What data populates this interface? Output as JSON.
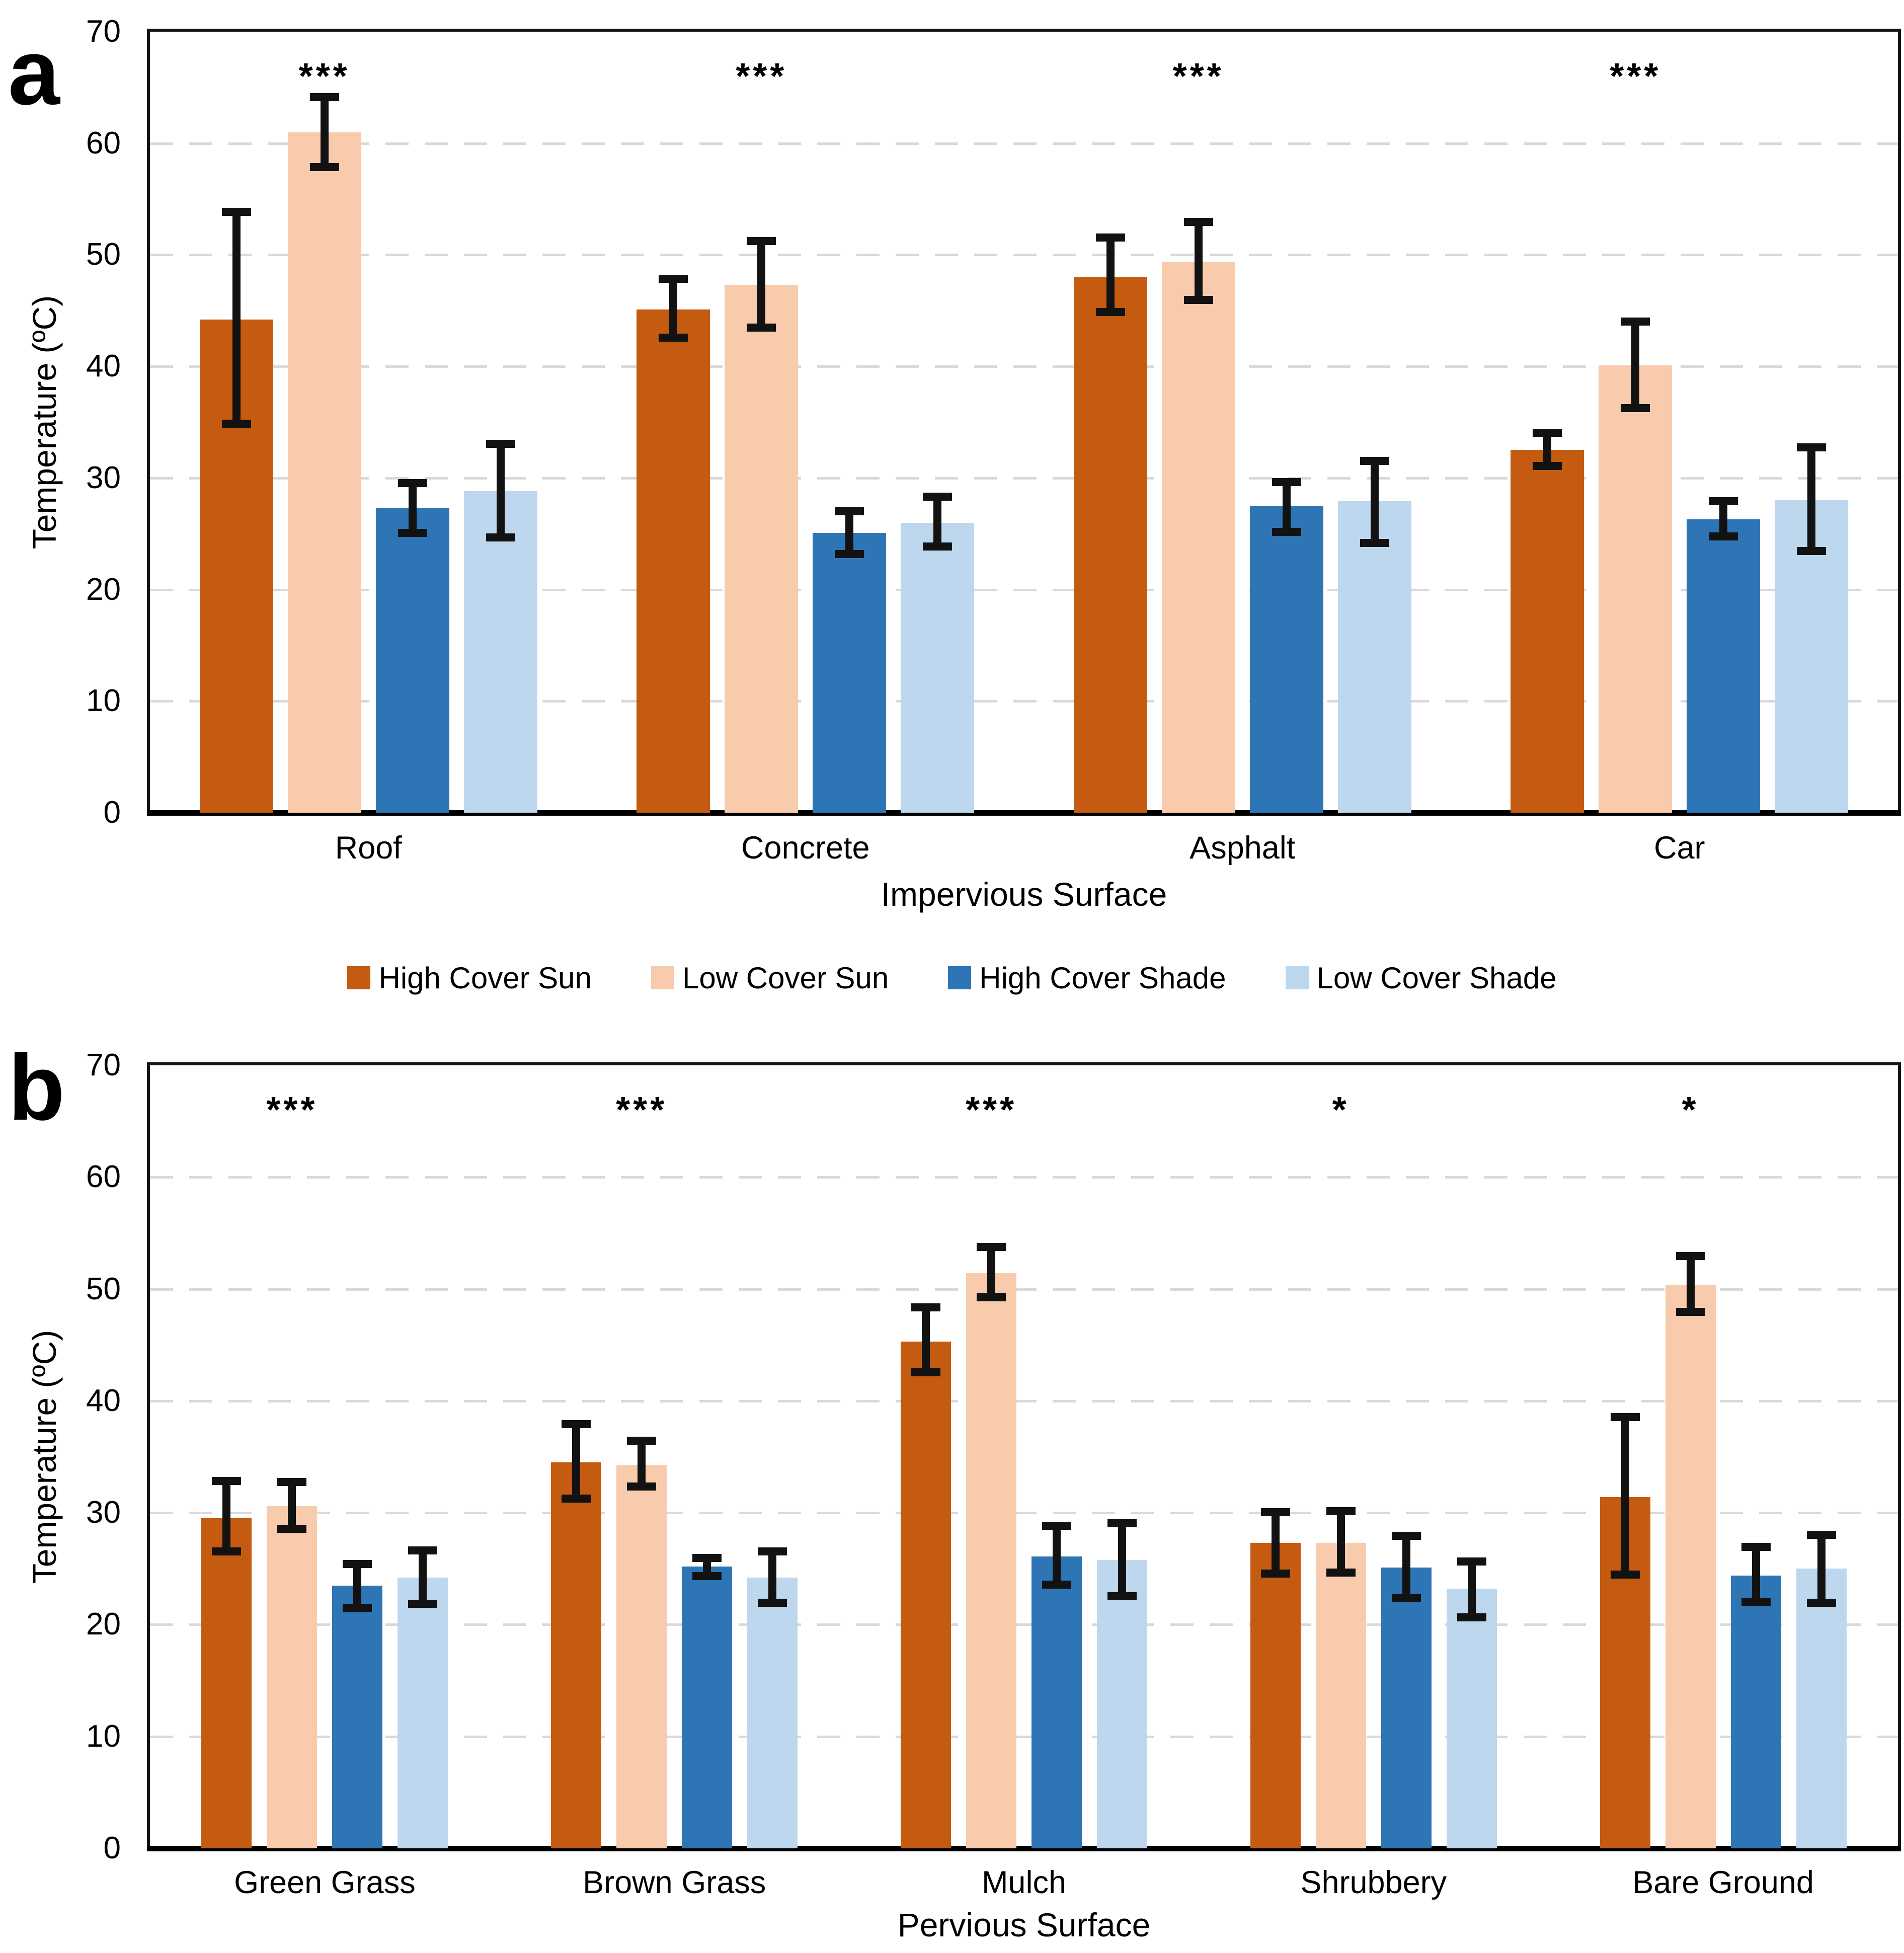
{
  "figure": {
    "y_axis_title": "Temperature (ºC)",
    "background_color": "#ffffff",
    "gridline_color": "#d9d9d9",
    "error_bar_color": "#121212",
    "legend": [
      {
        "label": "High Cover Sun",
        "color": "#C55A11"
      },
      {
        "label": "Low Cover Sun",
        "color": "#F8CBAD"
      },
      {
        "label": "High Cover Shade",
        "color": "#2E75B6"
      },
      {
        "label": "Low Cover Shade",
        "color": "#BDD7EE"
      }
    ]
  },
  "chart_data": [
    {
      "type": "bar",
      "panel": "a",
      "xlabel": "Impervious Surface",
      "ylabel": "Temperature (ºC)",
      "ylim": [
        0,
        70
      ],
      "yticks": [
        0,
        10,
        20,
        30,
        40,
        50,
        60,
        70
      ],
      "grid": "horizontal dashed at 10-60",
      "legend_position": "centered below panel a",
      "error_bars": "plus-minus, capped",
      "categories": [
        "Roof",
        "Concrete",
        "Asphalt",
        "Car"
      ],
      "significance": [
        "***",
        "***",
        "***",
        "***"
      ],
      "series": [
        {
          "name": "High Cover Sun",
          "color": "#C55A11",
          "values": [
            44.2,
            45.1,
            48.0,
            32.5
          ],
          "err_low": [
            34.5,
            42.2,
            44.5,
            30.7
          ],
          "err_high": [
            54.2,
            48.2,
            51.9,
            34.4
          ]
        },
        {
          "name": "Low Cover Sun",
          "color": "#F8CBAD",
          "values": [
            61.0,
            47.3,
            49.4,
            40.1
          ],
          "err_low": [
            57.5,
            43.1,
            45.6,
            35.9
          ],
          "err_high": [
            64.5,
            51.6,
            53.3,
            44.4
          ]
        },
        {
          "name": "High Cover Shade",
          "color": "#2E75B6",
          "values": [
            27.3,
            25.1,
            27.5,
            26.3
          ],
          "err_low": [
            24.7,
            22.8,
            24.8,
            24.4
          ],
          "err_high": [
            29.9,
            27.4,
            30.0,
            28.3
          ]
        },
        {
          "name": "Low Cover Shade",
          "color": "#BDD7EE",
          "values": [
            28.8,
            26.0,
            27.9,
            28.0
          ],
          "err_low": [
            24.3,
            23.5,
            23.8,
            23.1
          ],
          "err_high": [
            33.4,
            28.7,
            31.9,
            33.1
          ]
        }
      ]
    },
    {
      "type": "bar",
      "panel": "b",
      "xlabel": "Pervious Surface",
      "ylabel": "Temperature (ºC)",
      "ylim": [
        0,
        70
      ],
      "yticks": [
        0,
        10,
        20,
        30,
        40,
        50,
        60,
        70
      ],
      "grid": "horizontal dashed at 10-60",
      "legend_position": "shared legend above panel b",
      "error_bars": "plus-minus, capped",
      "categories": [
        "Green Grass",
        "Brown Grass",
        "Mulch",
        "Shrubbery",
        "Bare Ground"
      ],
      "significance": [
        "***",
        "***",
        "***",
        "*",
        "*"
      ],
      "series": [
        {
          "name": "High Cover Sun",
          "color": "#C55A11",
          "values": [
            29.5,
            34.5,
            45.3,
            27.3,
            31.4
          ],
          "err_low": [
            26.2,
            30.9,
            42.2,
            24.2,
            24.1
          ],
          "err_high": [
            33.2,
            38.3,
            48.7,
            30.4,
            38.9
          ]
        },
        {
          "name": "Low Cover Sun",
          "color": "#F8CBAD",
          "values": [
            30.6,
            34.3,
            51.4,
            27.3,
            50.4
          ],
          "err_low": [
            28.2,
            32.0,
            48.9,
            24.3,
            47.6
          ],
          "err_high": [
            33.1,
            36.8,
            54.1,
            30.5,
            53.3
          ]
        },
        {
          "name": "High Cover Shade",
          "color": "#2E75B6",
          "values": [
            23.5,
            25.2,
            26.1,
            25.1,
            24.4
          ],
          "err_low": [
            21.1,
            24.0,
            23.2,
            22.0,
            21.7
          ],
          "err_high": [
            25.8,
            26.3,
            29.2,
            28.3,
            27.3
          ]
        },
        {
          "name": "Low Cover Shade",
          "color": "#BDD7EE",
          "values": [
            24.2,
            24.2,
            25.8,
            23.2,
            25.0
          ],
          "err_low": [
            21.5,
            21.6,
            22.2,
            20.3,
            21.6
          ],
          "err_high": [
            27.0,
            26.9,
            29.4,
            26.0,
            28.4
          ]
        }
      ]
    }
  ]
}
